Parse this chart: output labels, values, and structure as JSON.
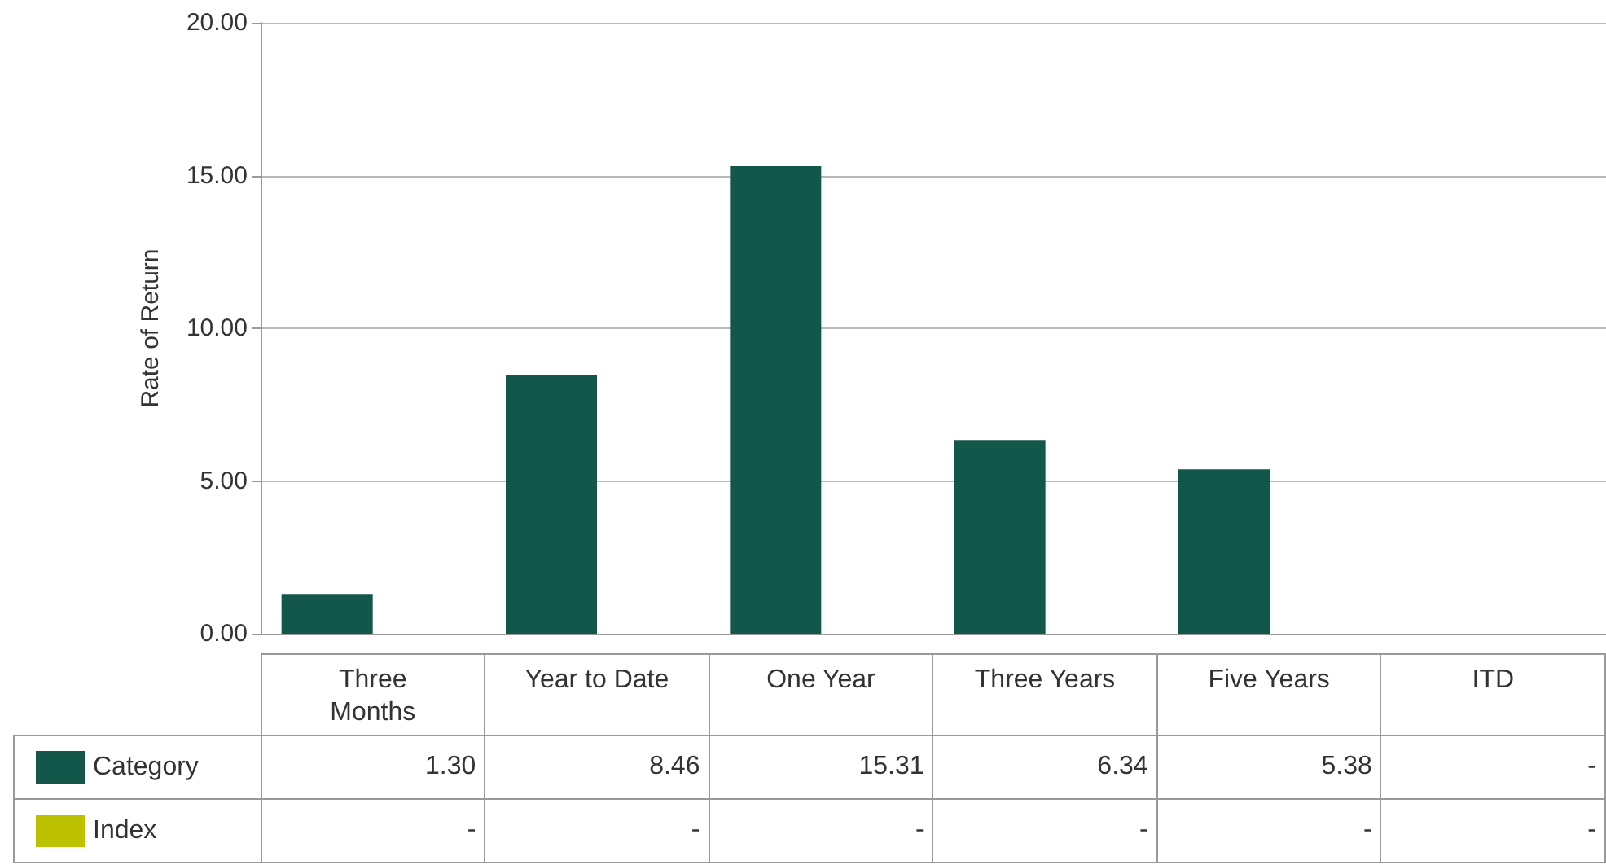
{
  "chart_data": {
    "type": "bar",
    "ylabel": "Rate of Return",
    "categories": [
      "Three Months",
      "Year to Date",
      "One Year",
      "Three Years",
      "Five Years",
      "ITD"
    ],
    "series": [
      {
        "name": "Category",
        "color": "#12574a",
        "values": [
          1.3,
          8.46,
          15.31,
          6.34,
          5.38,
          null
        ],
        "value_labels": [
          "1.30",
          "8.46",
          "15.31",
          "6.34",
          "5.38",
          "-"
        ]
      },
      {
        "name": "Index",
        "color": "#bcc200",
        "values": [
          null,
          null,
          null,
          null,
          null,
          null
        ],
        "value_labels": [
          "-",
          "-",
          "-",
          "-",
          "-",
          "-"
        ]
      }
    ],
    "ylim": [
      0,
      20
    ],
    "yticks": [
      {
        "value": 0,
        "label": "0.00"
      },
      {
        "value": 5,
        "label": "5.00"
      },
      {
        "value": 10,
        "label": "10.00"
      },
      {
        "value": 15,
        "label": "15.00"
      },
      {
        "value": 20,
        "label": "20.00"
      }
    ],
    "grid": "y",
    "legend": "bottom"
  }
}
